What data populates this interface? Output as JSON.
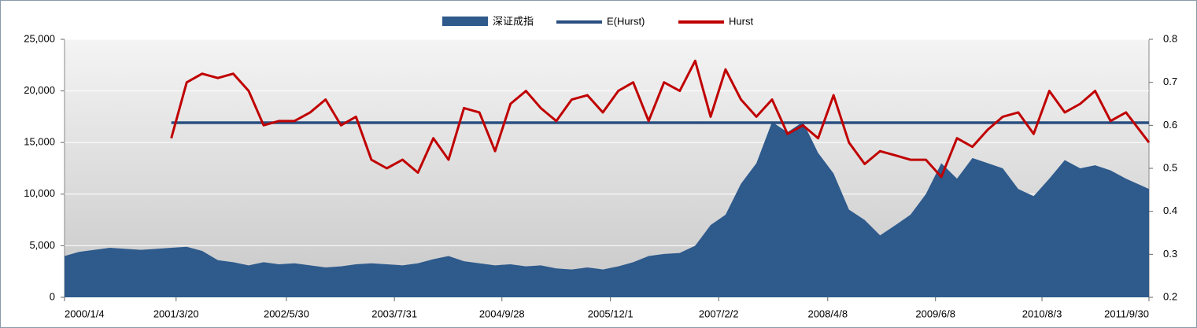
{
  "chart_data": {
    "type": "combo",
    "legend": "top",
    "grid": true,
    "x": [
      "2000/1/4",
      "2000/3/1",
      "2000/5/1",
      "2000/7/1",
      "2000/9/1",
      "2000/11/1",
      "2001/1/1",
      "2001/3/1",
      "2001/5/1",
      "2001/7/1",
      "2001/9/1",
      "2001/11/1",
      "2002/1/1",
      "2002/3/1",
      "2002/5/1",
      "2002/7/1",
      "2002/9/1",
      "2002/11/1",
      "2003/1/1",
      "2003/3/1",
      "2003/5/1",
      "2003/7/1",
      "2003/9/1",
      "2003/11/1",
      "2004/1/1",
      "2004/3/1",
      "2004/5/1",
      "2004/7/1",
      "2004/9/1",
      "2004/11/1",
      "2005/1/1",
      "2005/3/1",
      "2005/5/1",
      "2005/7/1",
      "2005/9/1",
      "2005/11/1",
      "2006/1/1",
      "2006/3/1",
      "2006/5/1",
      "2006/7/1",
      "2006/9/1",
      "2006/11/1",
      "2007/1/1",
      "2007/3/1",
      "2007/5/1",
      "2007/7/1",
      "2007/9/1",
      "2007/11/1",
      "2008/1/1",
      "2008/3/1",
      "2008/5/1",
      "2008/7/1",
      "2008/9/1",
      "2008/11/1",
      "2009/1/1",
      "2009/3/1",
      "2009/5/1",
      "2009/7/1",
      "2009/9/1",
      "2009/11/1",
      "2010/1/1",
      "2010/3/1",
      "2010/5/1",
      "2010/7/1",
      "2010/9/1",
      "2010/11/1",
      "2011/1/1",
      "2011/3/1",
      "2011/5/1",
      "2011/7/1",
      "2011/9/30"
    ],
    "xlim": [
      "2000/1/4",
      "2011/9/30"
    ],
    "xticks": [
      "2000/1/4",
      "2001/3/20",
      "2002/5/30",
      "2003/7/31",
      "2004/9/28",
      "2005/12/1",
      "2007/2/2",
      "2008/4/8",
      "2009/6/8",
      "2010/8/3",
      "2011/9/30"
    ],
    "ylim": [
      0,
      25000
    ],
    "yticks": [
      0,
      {
        "value": 5000,
        "label": "5,000"
      },
      {
        "value": 10000,
        "label": "10,000"
      },
      {
        "value": 15000,
        "label": "15,000"
      },
      {
        "value": 20000,
        "label": "20,000"
      },
      {
        "value": 25000,
        "label": "25,000"
      }
    ],
    "y2lim": [
      0.2,
      0.8
    ],
    "y2ticks": [
      0.2,
      0.3,
      0.4,
      0.5,
      0.6,
      0.7,
      0.8
    ],
    "series": [
      {
        "name": "深证成指",
        "type": "area",
        "color": "#2e5a8c",
        "values": [
          4000,
          4400,
          4600,
          4800,
          4700,
          4600,
          4700,
          4800,
          4900,
          4500,
          3600,
          3400,
          3100,
          3400,
          3200,
          3300,
          3100,
          2900,
          3000,
          3200,
          3300,
          3200,
          3100,
          3300,
          3700,
          4000,
          3500,
          3300,
          3100,
          3200,
          3000,
          3100,
          2800,
          2700,
          2900,
          2700,
          3000,
          3400,
          4000,
          4200,
          4300,
          5000,
          7000,
          8000,
          11000,
          13000,
          17000,
          16000,
          17000,
          14000,
          12000,
          8500,
          7500,
          6000,
          7000,
          8000,
          10000,
          13000,
          11500,
          13500,
          13000,
          12500,
          10500,
          9800,
          11500,
          13300,
          12500,
          12800,
          12300,
          11500,
          10500
        ]
      },
      {
        "name": "E(Hurst)",
        "type": "line",
        "axis": "y2",
        "color": "#2a4f80",
        "values": [
          null,
          null,
          null,
          null,
          null,
          null,
          null,
          0.606,
          0.606,
          0.606,
          0.606,
          0.606,
          0.606,
          0.606,
          0.606,
          0.606,
          0.606,
          0.606,
          0.606,
          0.606,
          0.606,
          0.606,
          0.606,
          0.606,
          0.606,
          0.606,
          0.606,
          0.606,
          0.606,
          0.606,
          0.606,
          0.606,
          0.606,
          0.606,
          0.606,
          0.606,
          0.606,
          0.606,
          0.606,
          0.606,
          0.606,
          0.606,
          0.606,
          0.606,
          0.606,
          0.606,
          0.606,
          0.606,
          0.606,
          0.606,
          0.606,
          0.606,
          0.606,
          0.606,
          0.606,
          0.606,
          0.606,
          0.606,
          0.606,
          0.606,
          0.606,
          0.606,
          0.606,
          0.606,
          0.606,
          0.606,
          0.606,
          0.606,
          0.606,
          0.606,
          0.606
        ]
      },
      {
        "name": "Hurst",
        "type": "line",
        "axis": "y2",
        "color": "#c00000",
        "values": [
          null,
          null,
          null,
          null,
          null,
          null,
          null,
          0.57,
          0.7,
          0.72,
          0.71,
          0.72,
          0.68,
          0.6,
          0.61,
          0.61,
          0.63,
          0.66,
          0.6,
          0.62,
          0.52,
          0.5,
          0.52,
          0.49,
          0.57,
          0.52,
          0.64,
          0.63,
          0.54,
          0.65,
          0.68,
          0.64,
          0.61,
          0.66,
          0.67,
          0.63,
          0.68,
          0.7,
          0.61,
          0.7,
          0.68,
          0.75,
          0.62,
          0.73,
          0.66,
          0.62,
          0.66,
          0.58,
          0.6,
          0.57,
          0.67,
          0.56,
          0.51,
          0.54,
          0.53,
          0.52,
          0.52,
          0.48,
          0.57,
          0.55,
          0.59,
          0.62,
          0.63,
          0.58,
          0.68,
          0.63,
          0.65,
          0.68,
          0.61,
          0.63,
          0.56
        ]
      }
    ]
  }
}
